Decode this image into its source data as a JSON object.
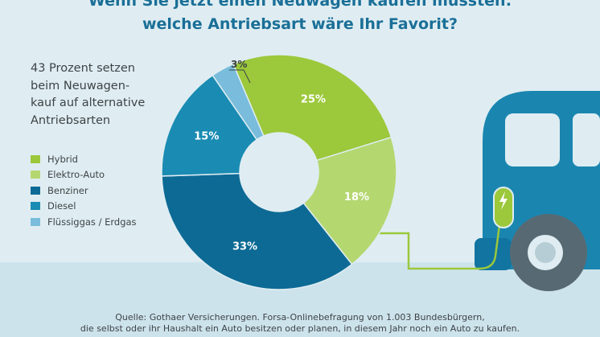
{
  "title": {
    "line1": "Wenn Sie jetzt einen Neuwagen kaufen müssten:",
    "line2": "welche Antriebsart wäre Ihr Favorit?"
  },
  "subtitle": {
    "line1": "43 Prozent setzen",
    "line2": "beim Neuwagen-",
    "line3": "kauf auf alternative",
    "line4": "Antriebsarten"
  },
  "source": {
    "line1": "Quelle: Gothaer Versicherungen. Forsa-Onlinebefragung von 1.003 Bundesbürgern,",
    "line2": "die selbst oder ihr Haushalt ein Auto besitzen oder planen, in diesem Jahr noch ein Auto zu kaufen."
  },
  "chart_data": {
    "type": "pie",
    "title": "Wenn Sie jetzt einen Neuwagen kaufen müssten: welche Antriebsart wäre Ihr Favorit?",
    "categories": [
      "Hybrid",
      "Elektro-Auto",
      "Benziner",
      "Diesel",
      "Flüssiggas / Erdgas"
    ],
    "values": [
      25,
      18,
      33,
      15,
      3
    ],
    "value_labels": [
      "25%",
      "18%",
      "33%",
      "15%",
      "3%"
    ],
    "unit": "%",
    "donut": true,
    "legend_position": "left",
    "colors": [
      "#9cc83b",
      "#b5d770",
      "#0d6a95",
      "#1a8bb3",
      "#79bcdb"
    ]
  },
  "colors": {
    "background": "#dfedf2",
    "band": "#cde3ec",
    "title": "#1a6f97",
    "text": "#3d4346",
    "vehicle": "#1a86b0",
    "vehicle_window": "#dfedf2",
    "charger": "#9cc83b",
    "tire": "#576a73"
  }
}
